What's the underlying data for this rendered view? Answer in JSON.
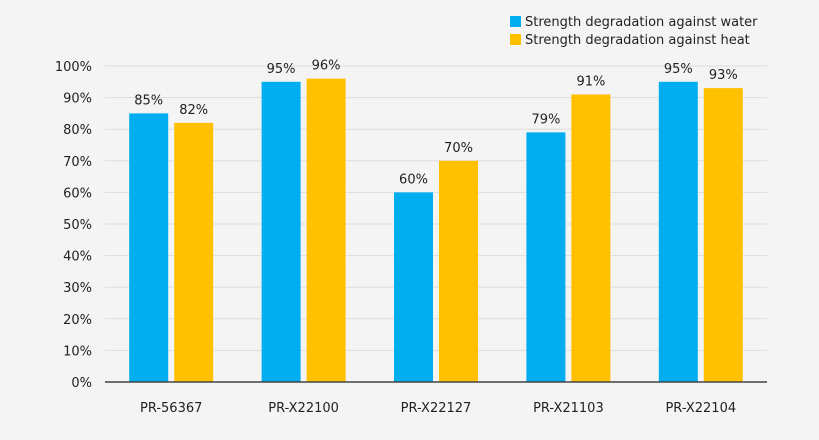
{
  "chart_data": {
    "type": "bar",
    "categories": [
      "PR-56367",
      "PR-X22100",
      "PR-X22127",
      "PR-X21103",
      "PR-X22104"
    ],
    "series": [
      {
        "name": "Strength degradation against water",
        "color": "#00aeef",
        "values": [
          85,
          95,
          60,
          79,
          95
        ]
      },
      {
        "name": "Strength degradation against heat",
        "color": "#ffc000",
        "values": [
          82,
          96,
          70,
          91,
          93
        ]
      }
    ],
    "value_labels": [
      [
        "85%",
        "95%",
        "60%",
        "79%",
        "95%"
      ],
      [
        "82%",
        "96%",
        "70%",
        "91%",
        "93%"
      ]
    ],
    "yticks": [
      "0%",
      "10%",
      "20%",
      "30%",
      "40%",
      "50%",
      "60%",
      "70%",
      "80%",
      "90%",
      "100%"
    ],
    "ylim": [
      0,
      100
    ],
    "grid": true,
    "legend_position": "top-right"
  }
}
